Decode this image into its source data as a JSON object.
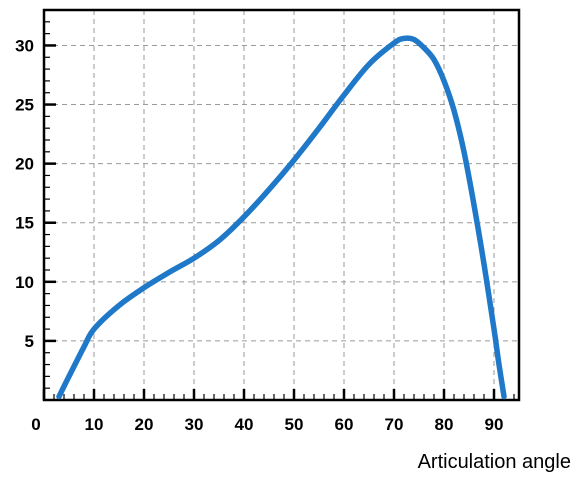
{
  "chart_data": {
    "type": "line",
    "title": "",
    "xlabel": "Articulation angle",
    "ylabel": "",
    "xlim": [
      0,
      95
    ],
    "ylim": [
      0,
      33
    ],
    "x_ticks": [
      0,
      10,
      20,
      30,
      40,
      50,
      60,
      70,
      80,
      90
    ],
    "y_ticks": [
      5,
      10,
      15,
      20,
      25,
      30
    ],
    "grid": true,
    "legend": "none",
    "series": [
      {
        "color": "#1f78c8",
        "points": [
          [
            3,
            0.3
          ],
          [
            5,
            2
          ],
          [
            8,
            4.5
          ],
          [
            10,
            6
          ],
          [
            15,
            8
          ],
          [
            20,
            9.5
          ],
          [
            25,
            10.8
          ],
          [
            30,
            12
          ],
          [
            35,
            13.5
          ],
          [
            40,
            15.5
          ],
          [
            45,
            17.8
          ],
          [
            50,
            20.3
          ],
          [
            55,
            23
          ],
          [
            60,
            25.8
          ],
          [
            65,
            28.4
          ],
          [
            70,
            30.2
          ],
          [
            72,
            30.6
          ],
          [
            74,
            30.5
          ],
          [
            76,
            29.8
          ],
          [
            78,
            28.8
          ],
          [
            80,
            27
          ],
          [
            82,
            24.5
          ],
          [
            84,
            21
          ],
          [
            86,
            16.5
          ],
          [
            88,
            11.5
          ],
          [
            90,
            6
          ],
          [
            91,
            3
          ],
          [
            92,
            0.3
          ]
        ]
      }
    ]
  }
}
